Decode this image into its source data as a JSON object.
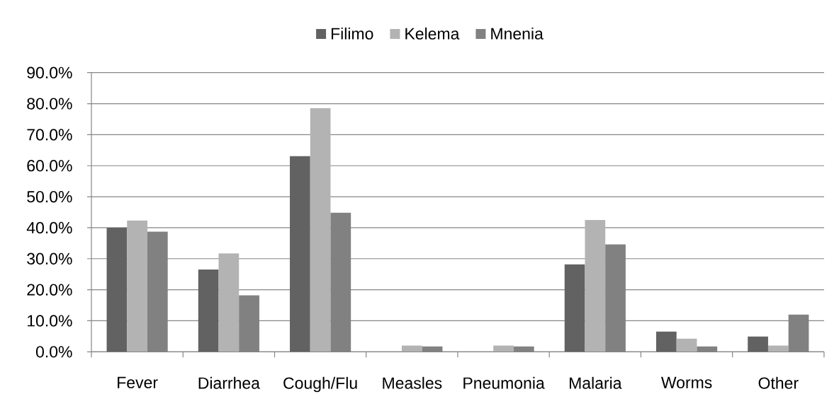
{
  "chart_data": {
    "type": "bar",
    "categories": [
      "Fever",
      "Diarrhea",
      "Cough/Flu",
      "Measles",
      "Pneumonia",
      "Malaria",
      "Worms",
      "Other"
    ],
    "series": [
      {
        "name": "Filimo",
        "color": "#626262",
        "values": [
          40.0,
          26.5,
          63.1,
          0,
          0,
          28.2,
          6.5,
          4.9
        ]
      },
      {
        "name": "Kelema",
        "color": "#b3b3b3",
        "values": [
          42.3,
          31.7,
          78.6,
          2.0,
          2.0,
          42.5,
          4.2,
          2.0
        ]
      },
      {
        "name": "Mnenia",
        "color": "#818181",
        "values": [
          38.7,
          18.2,
          44.8,
          1.7,
          1.7,
          34.6,
          1.7,
          12.0
        ]
      }
    ],
    "ylim": [
      0,
      90
    ],
    "yticks": [
      {
        "value": 0,
        "label": "0.0%"
      },
      {
        "value": 10,
        "label": "10.0%"
      },
      {
        "value": 20,
        "label": "20.0%"
      },
      {
        "value": 30,
        "label": "30.0%"
      },
      {
        "value": 40,
        "label": "40.0%"
      },
      {
        "value": 50,
        "label": "50.0%"
      },
      {
        "value": 60,
        "label": "60.0%"
      },
      {
        "value": 70,
        "label": "70.0%"
      },
      {
        "value": 80,
        "label": "80.0%"
      },
      {
        "value": 90,
        "label": "90.0%"
      }
    ],
    "grid": "y",
    "legend": "top"
  }
}
